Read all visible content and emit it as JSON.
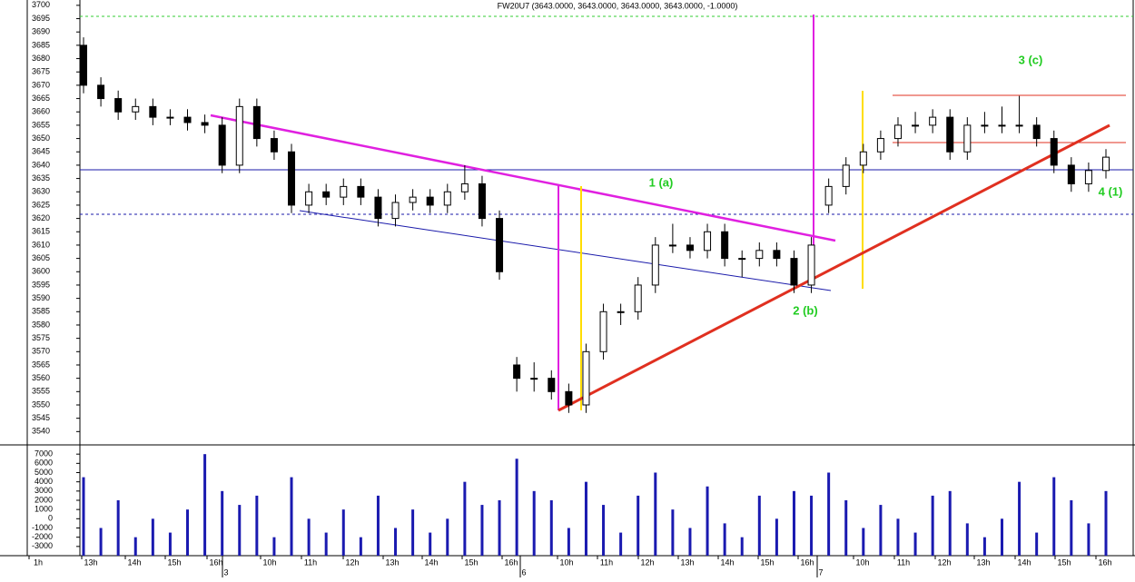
{
  "chart_data": {
    "type": "candlestick",
    "title": "FW20U7 (3643.0000, 3643.0000, 3643.0000, 3643.0000, -1.0000)",
    "annotations": [
      "1 (a)",
      "2 (b)",
      "3 (c)",
      "4 (1)"
    ],
    "ylim": [
      3535,
      3702
    ],
    "yticks": [
      3540,
      3545,
      3550,
      3555,
      3560,
      3565,
      3570,
      3575,
      3580,
      3585,
      3590,
      3595,
      3600,
      3605,
      3610,
      3615,
      3620,
      3625,
      3630,
      3635,
      3640,
      3645,
      3650,
      3655,
      3660,
      3665,
      3670,
      3675,
      3680,
      3685,
      3690,
      3695,
      3700
    ],
    "categories": [
      "1h",
      "13h",
      "14h",
      "15h",
      "16h",
      "10h",
      "11h",
      "12h",
      "13h",
      "14h",
      "15h",
      "16h",
      "10h",
      "11h",
      "12h",
      "13h",
      "14h",
      "15h",
      "16h",
      "10h",
      "11h",
      "12h",
      "13h",
      "14h",
      "15h",
      "16h"
    ],
    "days": [
      "3",
      "6",
      "7"
    ],
    "candles": [
      [
        3685,
        3688,
        3667,
        3670
      ],
      [
        3670,
        3673,
        3662,
        3665
      ],
      [
        3665,
        3668,
        3657,
        3660
      ],
      [
        3660,
        3665,
        3657,
        3662
      ],
      [
        3662,
        3665,
        3655,
        3658
      ],
      [
        3658,
        3661,
        3655,
        3658
      ],
      [
        3658,
        3661,
        3653,
        3656
      ],
      [
        3656,
        3659,
        3652,
        3655
      ],
      [
        3655,
        3658,
        3637,
        3640
      ],
      [
        3640,
        3665,
        3637,
        3662
      ],
      [
        3662,
        3665,
        3647,
        3650
      ],
      [
        3650,
        3653,
        3642,
        3645
      ],
      [
        3645,
        3648,
        3622,
        3625
      ],
      [
        3625,
        3633,
        3622,
        3630
      ],
      [
        3630,
        3633,
        3625,
        3628
      ],
      [
        3628,
        3635,
        3625,
        3632
      ],
      [
        3632,
        3635,
        3625,
        3628
      ],
      [
        3628,
        3631,
        3617,
        3620
      ],
      [
        3620,
        3629,
        3617,
        3626
      ],
      [
        3626,
        3631,
        3623,
        3628
      ],
      [
        3628,
        3631,
        3622,
        3625
      ],
      [
        3625,
        3633,
        3622,
        3630
      ],
      [
        3630,
        3640,
        3627,
        3633
      ],
      [
        3633,
        3636,
        3617,
        3620
      ],
      [
        3620,
        3623,
        3597,
        3600
      ],
      [
        3565,
        3568,
        3555,
        3560
      ],
      [
        3560,
        3566,
        3555,
        3560
      ],
      [
        3560,
        3563,
        3552,
        3555
      ],
      [
        3555,
        3558,
        3547,
        3550
      ],
      [
        3550,
        3573,
        3547,
        3570
      ],
      [
        3570,
        3588,
        3567,
        3585
      ],
      [
        3585,
        3588,
        3580,
        3585
      ],
      [
        3585,
        3598,
        3582,
        3595
      ],
      [
        3595,
        3613,
        3592,
        3610
      ],
      [
        3610,
        3618,
        3607,
        3610
      ],
      [
        3610,
        3613,
        3605,
        3608
      ],
      [
        3608,
        3618,
        3605,
        3615
      ],
      [
        3615,
        3618,
        3602,
        3605
      ],
      [
        3605,
        3608,
        3598,
        3605
      ],
      [
        3605,
        3611,
        3602,
        3608
      ],
      [
        3608,
        3611,
        3602,
        3605
      ],
      [
        3605,
        3608,
        3592,
        3595
      ],
      [
        3595,
        3613,
        3592,
        3610
      ],
      [
        3625,
        3635,
        3622,
        3632
      ],
      [
        3632,
        3643,
        3629,
        3640
      ],
      [
        3640,
        3648,
        3637,
        3645
      ],
      [
        3645,
        3653,
        3642,
        3650
      ],
      [
        3650,
        3658,
        3647,
        3655
      ],
      [
        3655,
        3660,
        3652,
        3655
      ],
      [
        3655,
        3661,
        3652,
        3658
      ],
      [
        3658,
        3661,
        3642,
        3645
      ],
      [
        3645,
        3658,
        3642,
        3655
      ],
      [
        3655,
        3660,
        3652,
        3655
      ],
      [
        3655,
        3662,
        3652,
        3655
      ],
      [
        3655,
        3666,
        3652,
        3655
      ],
      [
        3655,
        3658,
        3647,
        3650
      ],
      [
        3650,
        3653,
        3637,
        3640
      ],
      [
        3640,
        3643,
        3630,
        3633
      ],
      [
        3633,
        3641,
        3630,
        3638
      ],
      [
        3638,
        3646,
        3635,
        3643
      ]
    ],
    "volume": {
      "ylim": [
        -4000,
        8000
      ],
      "yticks": [
        7000,
        6000,
        5000,
        4000,
        3000,
        2000,
        1000,
        0,
        -1000,
        -2000,
        -3000
      ],
      "values": [
        4500,
        -1000,
        2000,
        -2000,
        0,
        -1500,
        1000,
        7000,
        3000,
        1500,
        2500,
        -2000,
        4500,
        0,
        -1500,
        1000,
        -2000,
        2500,
        -1000,
        1000,
        -1500,
        0,
        4000,
        1500,
        2000,
        6500,
        3000,
        2000,
        -1000,
        4000,
        1500,
        -1500,
        2500,
        5000,
        1000,
        -1000,
        3500,
        -500,
        -2000,
        2500,
        0,
        3000,
        2500,
        5000,
        2000,
        -1000,
        1500,
        0,
        -1500,
        2500,
        3000,
        -500,
        -2000,
        0,
        4000,
        -1500,
        4500,
        2000,
        -500,
        3000
      ]
    }
  }
}
